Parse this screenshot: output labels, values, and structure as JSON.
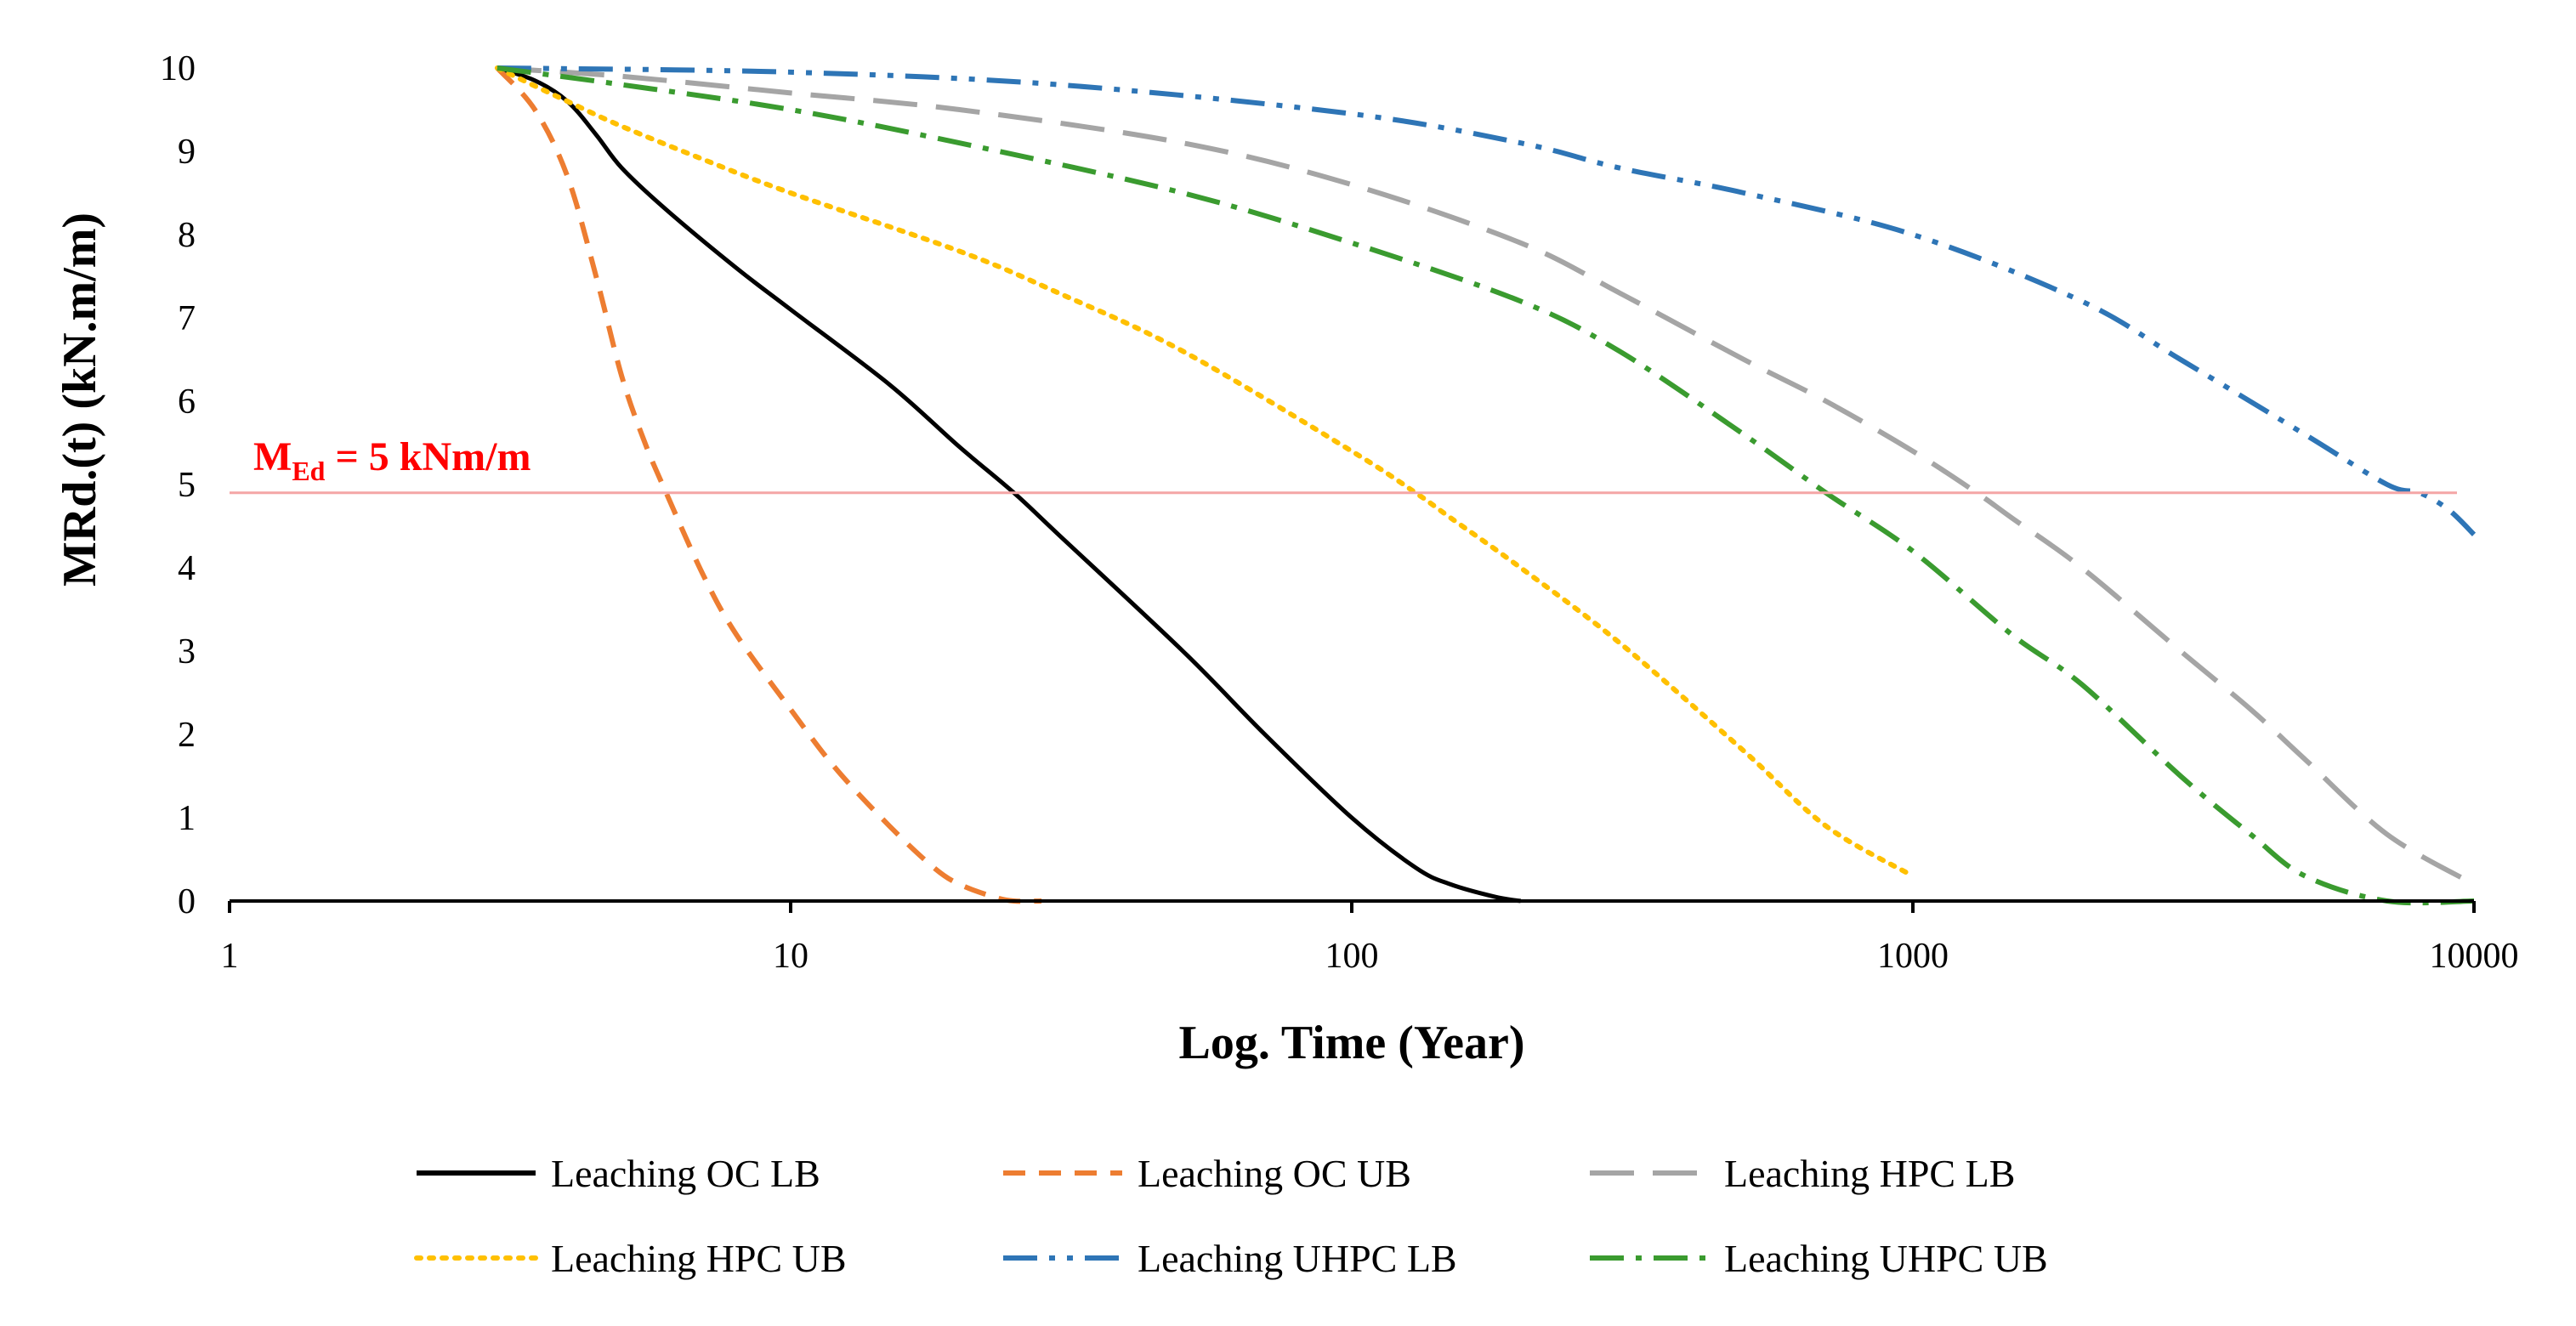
{
  "chart_data": {
    "type": "line",
    "title": "",
    "xlabel": "Log. Time (Year)",
    "ylabel": "MRd.(t)  (kN.m/m)",
    "xscale": "log",
    "xlim": [
      1,
      10000
    ],
    "ylim": [
      0,
      10
    ],
    "xticks": [
      1,
      10,
      100,
      1000,
      10000
    ],
    "xtick_labels": [
      "1",
      "10",
      "100",
      "1000",
      "10000"
    ],
    "yticks": [
      0,
      1,
      2,
      3,
      4,
      5,
      6,
      7,
      8,
      9,
      10
    ],
    "ytick_labels": [
      "0",
      "1",
      "2",
      "3",
      "4",
      "5",
      "6",
      "7",
      "8",
      "9",
      "10"
    ],
    "grid": false,
    "legend_position": "bottom",
    "annotations": {
      "threshold": {
        "y": 4.9,
        "color": "#f4a6a6",
        "label_main": "M",
        "label_sub": "Ed",
        "label_rest": " = 5 kNm/m",
        "label_color": "#ff0000"
      }
    },
    "series": [
      {
        "name": "Leaching OC LB",
        "color": "#000000",
        "dash": "solid",
        "x": [
          3,
          3.5,
          4,
          4.5,
          5,
          6,
          8,
          10,
          15,
          20,
          25,
          30,
          50,
          70,
          100,
          130,
          150,
          180,
          200
        ],
        "y": [
          10,
          9.85,
          9.6,
          9.2,
          8.8,
          8.3,
          7.6,
          7.1,
          6.2,
          5.45,
          4.9,
          4.4,
          3.0,
          2.0,
          1.0,
          0.4,
          0.2,
          0.05,
          0
        ]
      },
      {
        "name": "Leaching OC UB",
        "color": "#ed7d31",
        "dash": "dashed",
        "x": [
          3,
          3.5,
          4,
          4.5,
          5,
          5.5,
          6,
          7,
          8,
          10,
          12,
          15,
          18,
          20,
          23,
          25,
          28
        ],
        "y": [
          10,
          9.5,
          8.7,
          7.5,
          6.3,
          5.5,
          4.9,
          3.9,
          3.2,
          2.3,
          1.6,
          0.9,
          0.4,
          0.2,
          0.05,
          0,
          0
        ]
      },
      {
        "name": "Leaching HPC LB",
        "color": "#a5a5a5",
        "dash": "longdash",
        "x": [
          3,
          5,
          10,
          20,
          50,
          100,
          200,
          300,
          500,
          700,
          1000,
          1300,
          1500,
          2000,
          3000,
          4000,
          5000,
          7000,
          10000
        ],
        "y": [
          10,
          9.9,
          9.7,
          9.5,
          9.1,
          8.6,
          7.9,
          7.3,
          6.5,
          6.0,
          5.4,
          4.9,
          4.6,
          4.0,
          3.0,
          2.3,
          1.7,
          0.8,
          0.2
        ]
      },
      {
        "name": "Leaching HPC UB",
        "color": "#ffc000",
        "dash": "dotted",
        "x": [
          3,
          4,
          5,
          7,
          10,
          20,
          30,
          50,
          100,
          130,
          150,
          200,
          300,
          500,
          700,
          1000
        ],
        "y": [
          10,
          9.6,
          9.3,
          8.9,
          8.5,
          7.8,
          7.3,
          6.6,
          5.4,
          4.9,
          4.6,
          4.0,
          3.1,
          1.8,
          0.9,
          0.3
        ]
      },
      {
        "name": "Leaching UHPC LB",
        "color": "#2e75b6",
        "dash": "dashdotdot",
        "x": [
          3,
          10,
          30,
          100,
          200,
          300,
          500,
          1000,
          2000,
          3000,
          5000,
          7000,
          8000,
          9000,
          10000
        ],
        "y": [
          10,
          9.95,
          9.8,
          9.45,
          9.1,
          8.8,
          8.5,
          8.0,
          7.2,
          6.5,
          5.6,
          5.0,
          4.9,
          4.7,
          4.4
        ]
      },
      {
        "name": "Leaching UHPC UB",
        "color": "#3a9b2f",
        "dash": "dashdot",
        "x": [
          3,
          5,
          10,
          20,
          50,
          100,
          200,
          300,
          500,
          700,
          1000,
          1500,
          2000,
          3000,
          4000,
          5000,
          7000,
          10000
        ],
        "y": [
          10,
          9.8,
          9.5,
          9.1,
          8.5,
          7.9,
          7.2,
          6.6,
          5.6,
          4.9,
          4.2,
          3.2,
          2.6,
          1.5,
          0.8,
          0.3,
          0,
          0
        ]
      }
    ]
  }
}
